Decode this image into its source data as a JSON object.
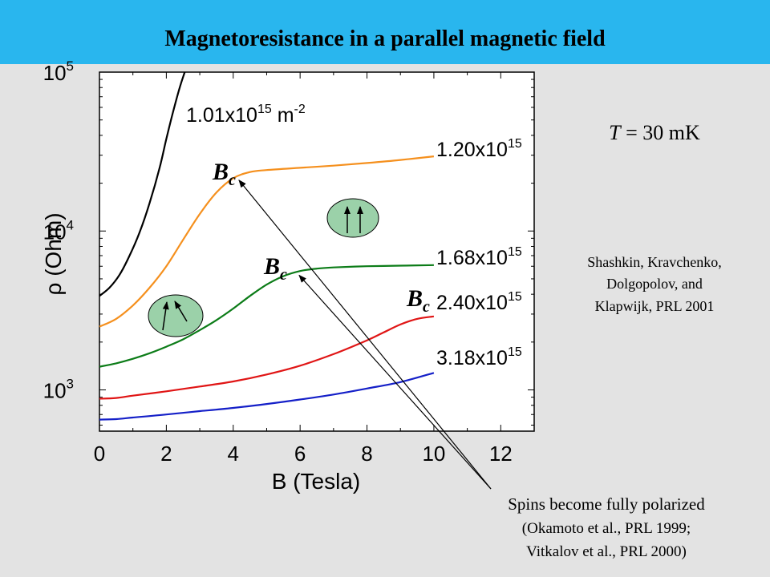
{
  "slide": {
    "title": "Magnetoresistance  in a parallel magnetic field",
    "temperature_T": "T",
    "temperature_rest": " = 30 mK",
    "citation_lines": [
      "Shashkin, Kravchenko,",
      "Dolgopolov, and",
      "Klapwijk, PRL 2001"
    ],
    "callout": {
      "line1": "Spins become fully polarized",
      "line2": "(Okamoto et al., PRL 1999;",
      "line3": "Vitkalov et al., PRL 2000)"
    },
    "bc_label": "B",
    "bc_sub": "c"
  },
  "chart_data": {
    "type": "line",
    "title": "",
    "xlabel": "B (Tesla)",
    "ylabel": "ρ (Ohm)",
    "xlim": [
      0,
      13
    ],
    "ylim": [
      550,
      100000
    ],
    "yscale": "log",
    "x_ticks": [
      0,
      2,
      4,
      6,
      8,
      10,
      12
    ],
    "y_ticks": [
      {
        "value": 1000,
        "base": "10",
        "exp": "3"
      },
      {
        "value": 10000,
        "base": "10",
        "exp": "4"
      },
      {
        "value": 100000,
        "base": "10",
        "exp": "5"
      }
    ],
    "series": [
      {
        "name": "1.01x10^15 m^-2",
        "label_base": "1.01x10",
        "label_exp": "15",
        "label_unit": " m",
        "label_unit_exp": "-2",
        "color": "#000000",
        "x": [
          0,
          0.3,
          0.6,
          0.9,
          1.2,
          1.5,
          1.8,
          2.0,
          2.2,
          2.4,
          2.55
        ],
        "y": [
          3900,
          4400,
          5300,
          7000,
          9800,
          15000,
          25000,
          38000,
          56000,
          80000,
          100000
        ]
      },
      {
        "name": "1.20x10^15",
        "label_base": "1.20x10",
        "label_exp": "15",
        "color": "#f5901e",
        "x": [
          0,
          0.5,
          1.0,
          1.5,
          2.0,
          2.5,
          3.0,
          3.5,
          4.0,
          4.5,
          5.0,
          6.0,
          7.0,
          8.0,
          9.0,
          10.0
        ],
        "y": [
          2500,
          2800,
          3400,
          4400,
          6000,
          8800,
          12800,
          17500,
          21500,
          23500,
          24200,
          25000,
          25800,
          26800,
          28000,
          29500
        ]
      },
      {
        "name": "1.68x10^15",
        "label_base": "1.68x10",
        "label_exp": "15",
        "color": "#0c7c18",
        "x": [
          0,
          0.5,
          1.0,
          1.5,
          2.0,
          2.5,
          3.0,
          3.5,
          4.0,
          4.5,
          5.0,
          5.5,
          6.0,
          6.5,
          7.0,
          8.0,
          9.0,
          10.0
        ],
        "y": [
          1400,
          1470,
          1570,
          1700,
          1870,
          2080,
          2380,
          2750,
          3250,
          3900,
          4600,
          5200,
          5600,
          5800,
          5900,
          6000,
          6050,
          6100
        ]
      },
      {
        "name": "2.40x10^15",
        "label_base": "2.40x10",
        "label_exp": "15",
        "color": "#e01515",
        "x": [
          0,
          0.5,
          1,
          2,
          3,
          4,
          5,
          6,
          7,
          8,
          8.5,
          9,
          9.5,
          10
        ],
        "y": [
          880,
          890,
          920,
          980,
          1050,
          1130,
          1250,
          1420,
          1680,
          2050,
          2300,
          2580,
          2800,
          2900
        ]
      },
      {
        "name": "3.18x10^15",
        "label_base": "3.18x10",
        "label_exp": "15",
        "color": "#1520c8",
        "x": [
          0,
          0.5,
          1,
          2,
          3,
          4,
          5,
          6,
          7,
          8,
          9,
          10
        ],
        "y": [
          650,
          655,
          670,
          700,
          735,
          770,
          815,
          870,
          935,
          1020,
          1120,
          1280
        ]
      }
    ],
    "bc_markers": [
      {
        "series": "1.20x10^15",
        "b": 4.1
      },
      {
        "series": "1.68x10^15",
        "b": 5.9
      }
    ]
  }
}
